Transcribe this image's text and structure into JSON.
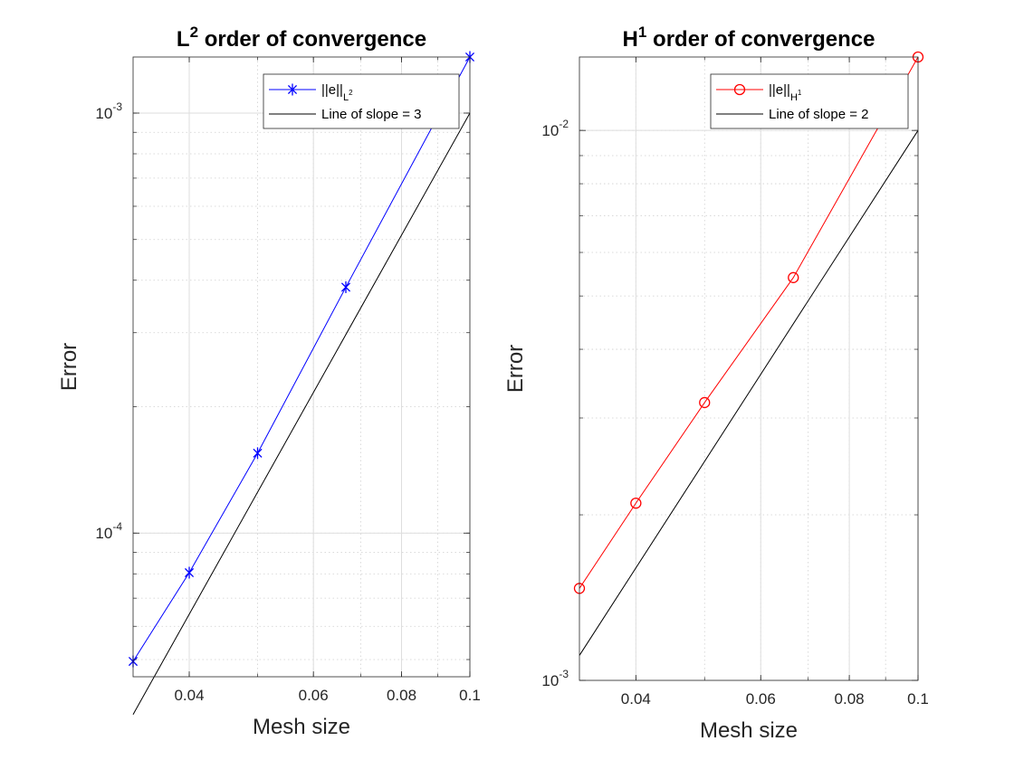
{
  "chart_data": [
    {
      "type": "line",
      "scale": "loglog",
      "title": {
        "base": "L",
        "sup": "2",
        "rest": " order of convergence"
      },
      "xlabel": "Mesh size",
      "ylabel": "Error",
      "xlim": [
        0.0333,
        0.1
      ],
      "ylim": [
        4.55e-05,
        0.00136
      ],
      "xticks": [
        0.04,
        0.06,
        0.08,
        0.1
      ],
      "xtick_labels": [
        "0.04",
        "0.06",
        "0.08",
        "0.1"
      ],
      "yticks": [
        0.0001,
        0.001
      ],
      "ytick_labels": [
        {
          "base": "10",
          "exp": "-4"
        },
        {
          "base": "10",
          "exp": "-3"
        }
      ],
      "grid": true,
      "legend_position": "top-right",
      "series": [
        {
          "name": "||e||_{L^2}",
          "legend": {
            "main": "||e||",
            "sub": "L",
            "subsup": "2"
          },
          "color": "#0000ff",
          "marker": "asterisk",
          "x": [
            0.0333,
            0.04,
            0.05,
            0.0667,
            0.1
          ],
          "y": [
            4.95e-05,
            8.05e-05,
            0.000155,
            0.000385,
            0.00136
          ]
        },
        {
          "name": "Line of slope = 3",
          "legend": {
            "main": "Line of slope = 3"
          },
          "color": "#000000",
          "marker": "none",
          "x": [
            0.0333,
            0.1
          ],
          "y": [
            3.7e-05,
            0.001
          ]
        }
      ]
    },
    {
      "type": "line",
      "scale": "loglog",
      "title": {
        "base": "H",
        "sup": "1",
        "rest": " order of convergence"
      },
      "xlabel": "Mesh size",
      "ylabel": "Error",
      "xlim": [
        0.0333,
        0.1
      ],
      "ylim": [
        0.001,
        0.0136
      ],
      "xticks": [
        0.04,
        0.06,
        0.08,
        0.1
      ],
      "xtick_labels": [
        "0.04",
        "0.06",
        "0.08",
        "0.1"
      ],
      "yticks": [
        0.001,
        0.01
      ],
      "ytick_labels": [
        {
          "base": "10",
          "exp": "-3"
        },
        {
          "base": "10",
          "exp": "-2"
        }
      ],
      "grid": true,
      "legend_position": "top-right",
      "series": [
        {
          "name": "||e||_{H^1}",
          "legend": {
            "main": "||e||",
            "sub": "H",
            "subsup": "1"
          },
          "color": "#ff0000",
          "marker": "circle",
          "x": [
            0.0333,
            0.04,
            0.05,
            0.0667,
            0.1
          ],
          "y": [
            0.00147,
            0.0021,
            0.0032,
            0.0054,
            0.0136
          ]
        },
        {
          "name": "Line of slope = 2",
          "legend": {
            "main": "Line of slope = 2"
          },
          "color": "#000000",
          "marker": "none",
          "x": [
            0.0333,
            0.1
          ],
          "y": [
            0.00111,
            0.01
          ]
        }
      ]
    }
  ]
}
